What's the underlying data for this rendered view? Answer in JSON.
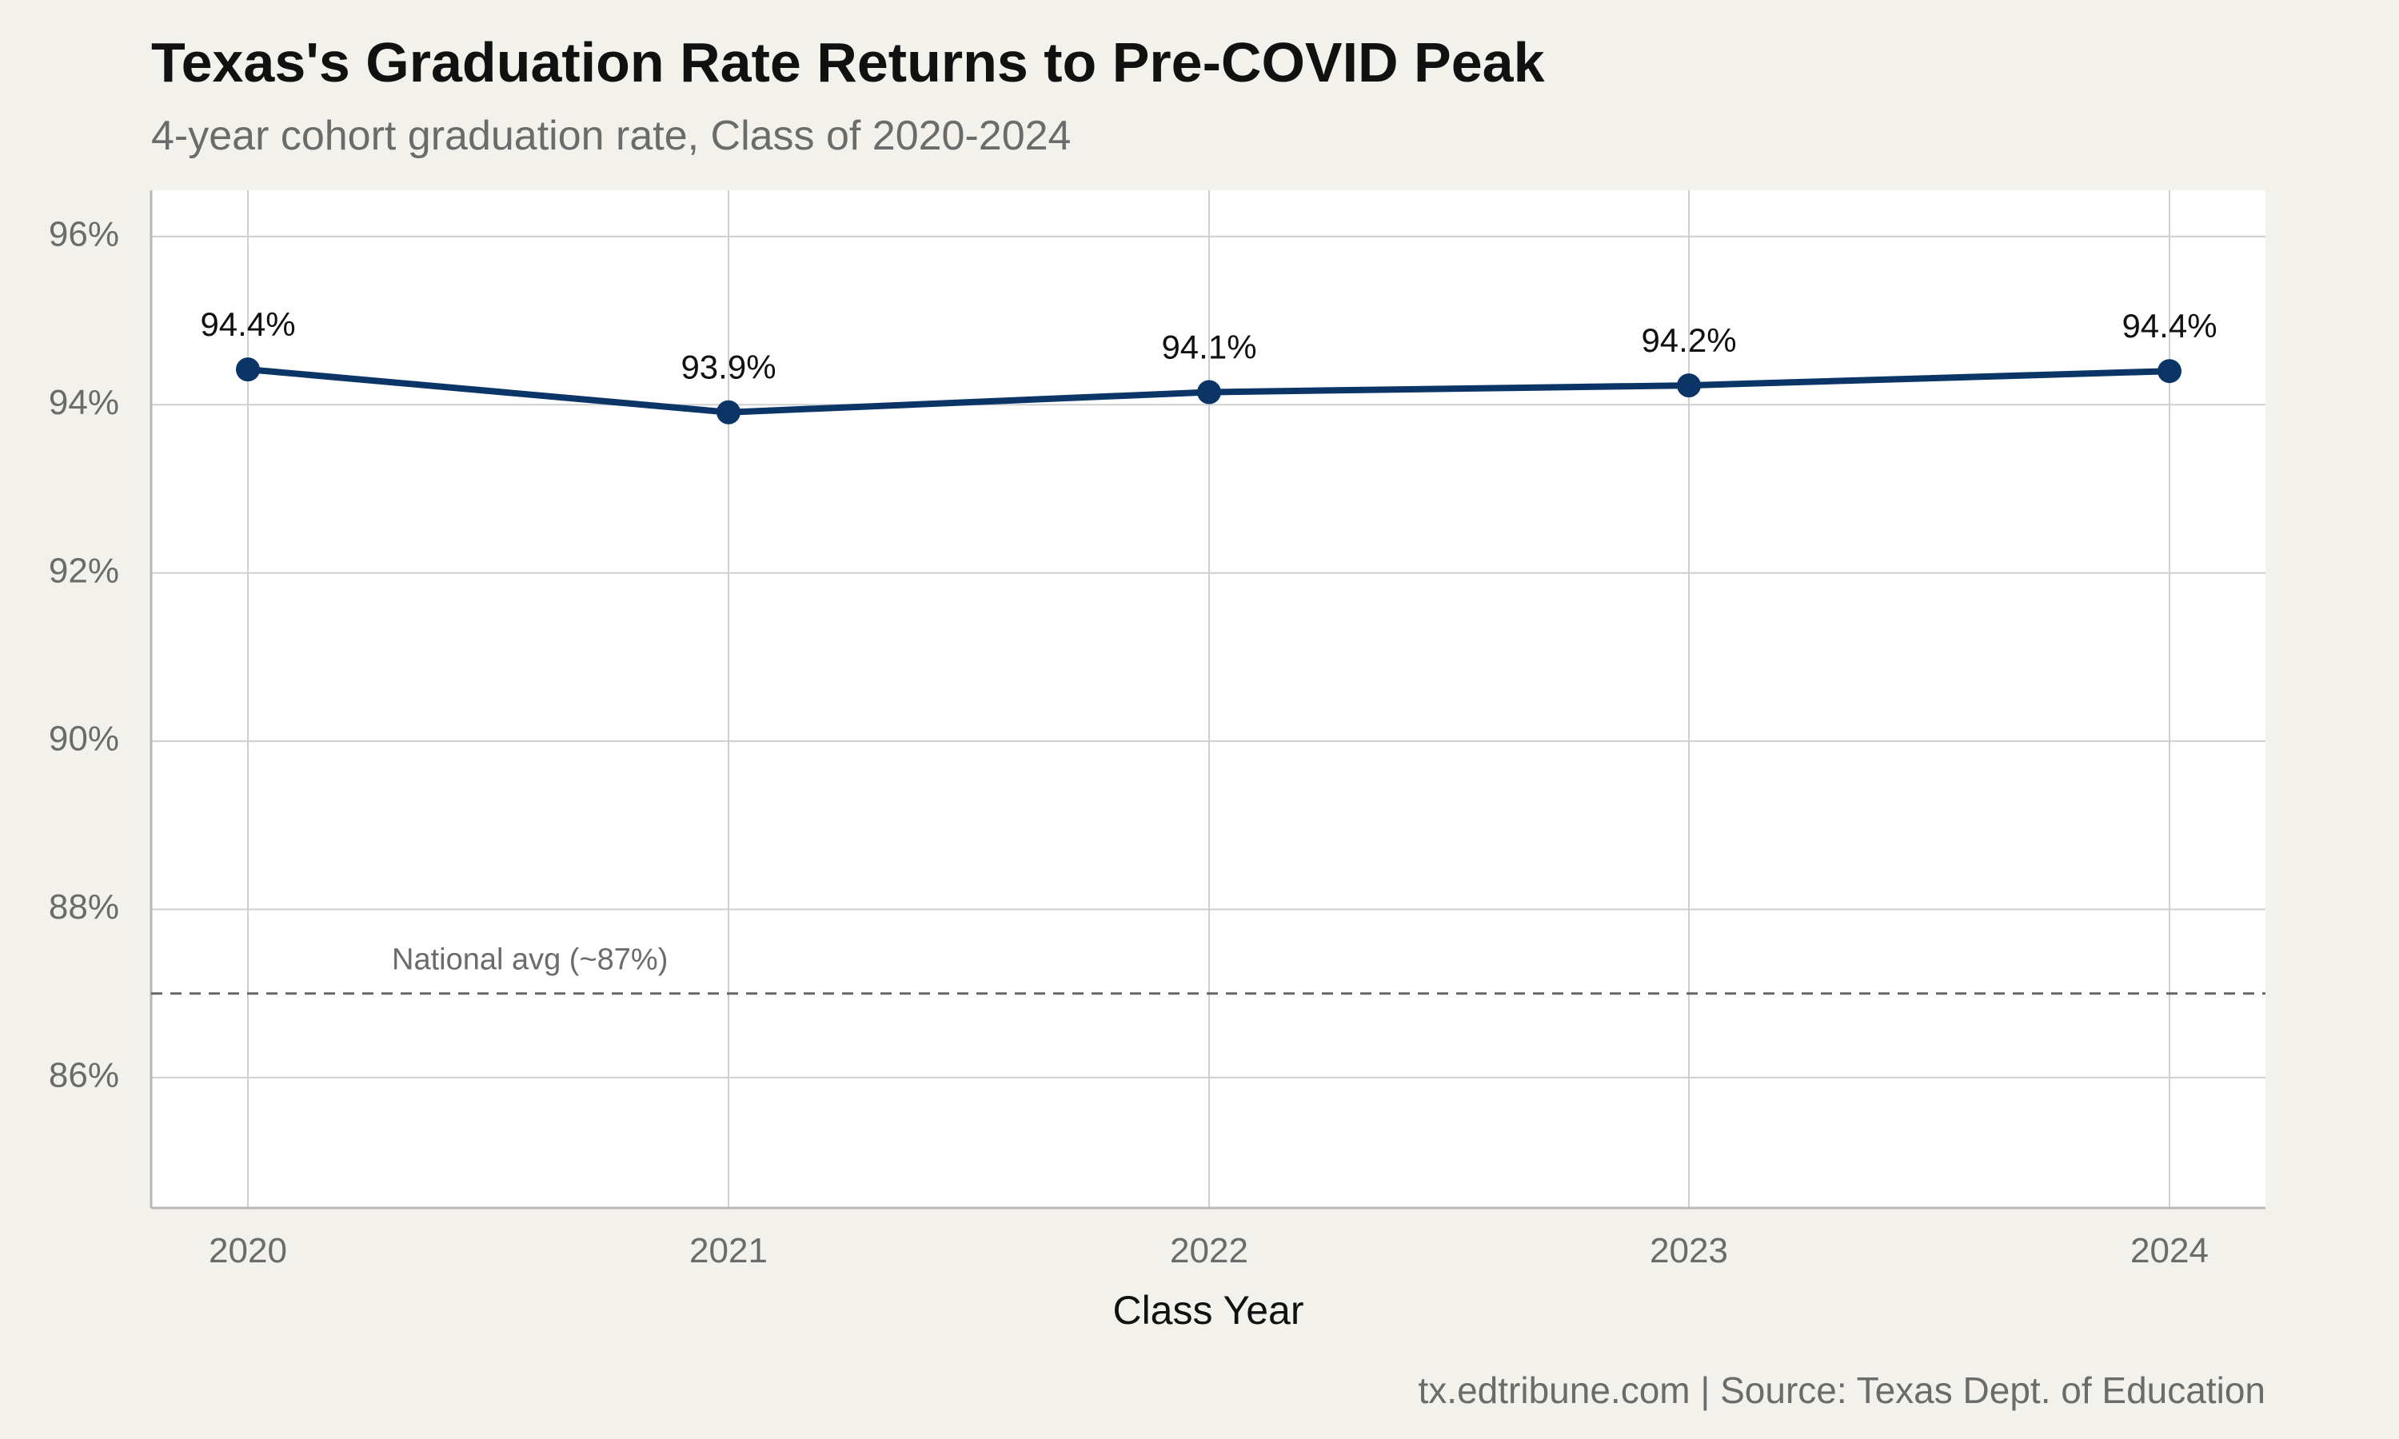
{
  "title": "Texas's Graduation Rate Returns to Pre-COVID Peak",
  "subtitle": "4-year cohort graduation rate, Class of 2020-2024",
  "caption": "tx.edtribune.com | Source: Texas Dept. of Education",
  "colors": {
    "background": "#f3f1ec",
    "panel": "#ffffff",
    "line": "#0b3566",
    "grid": "#cfcfcf",
    "reference": "#666666"
  },
  "chart_data": {
    "type": "line",
    "x": [
      2020,
      2021,
      2022,
      2023,
      2024
    ],
    "xtick_labels": [
      "2020",
      "2021",
      "2022",
      "2023",
      "2024"
    ],
    "xlabel": "Class Year",
    "ylabel": "",
    "ylim": [
      84.45,
      96.55
    ],
    "yticks": [
      86,
      88,
      90,
      92,
      94,
      96
    ],
    "ytick_labels": [
      "86%",
      "88%",
      "90%",
      "92%",
      "94%",
      "96%"
    ],
    "series": [
      {
        "values": [
          94.42,
          93.91,
          94.15,
          94.23,
          94.4
        ],
        "labels": [
          "94.4%",
          "93.9%",
          "94.1%",
          "94.2%",
          "94.4%"
        ]
      }
    ],
    "reference_line": {
      "value": 87,
      "label": "National avg (~87%)",
      "style": "dashed"
    },
    "grid": true,
    "legend": "none"
  }
}
